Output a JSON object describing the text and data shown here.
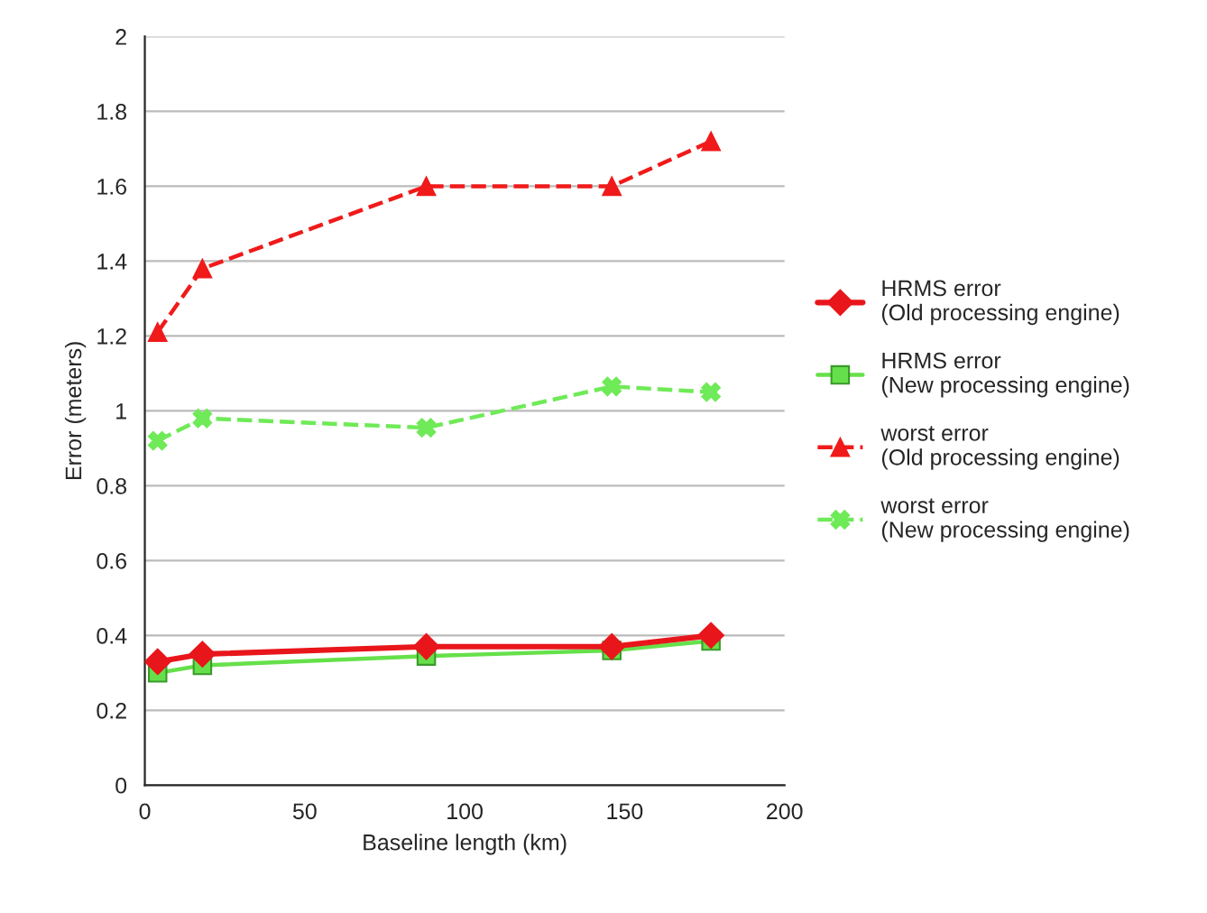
{
  "chart_data": {
    "type": "line",
    "xlabel": "Baseline length (km)",
    "ylabel": "Error (meters)",
    "xlim": [
      0,
      200
    ],
    "xticks": [
      0,
      50,
      100,
      150,
      200
    ],
    "ylim": [
      0,
      2
    ],
    "yticks": [
      0,
      0.2,
      0.4,
      0.6,
      0.8,
      1,
      1.2,
      1.4,
      1.6,
      1.8,
      2
    ],
    "grid": "y",
    "legend": "right",
    "x": [
      4,
      18,
      88,
      146,
      177
    ],
    "series": [
      {
        "name": "HRMS error (Old processing engine)",
        "color": "#e8161b",
        "values": [
          0.33,
          0.35,
          0.37,
          0.37,
          0.4
        ],
        "marker": "diamond",
        "line_style": "solid"
      },
      {
        "name": "HRMS error (New processing engine)",
        "color": "#66e04a",
        "values": [
          0.3,
          0.32,
          0.345,
          0.36,
          0.385
        ],
        "marker": "square",
        "line_style": "solid"
      },
      {
        "name": "worst error (Old processing engine)",
        "color": "#f01a1a",
        "values": [
          1.21,
          1.38,
          1.6,
          1.6,
          1.72
        ],
        "marker": "triangle",
        "line_style": "dashed"
      },
      {
        "name": "worst error (New processing engine)",
        "color": "#6fea58",
        "values": [
          0.92,
          0.98,
          0.955,
          1.065,
          1.05
        ],
        "marker": "cross",
        "line_style": "dashed"
      }
    ]
  }
}
